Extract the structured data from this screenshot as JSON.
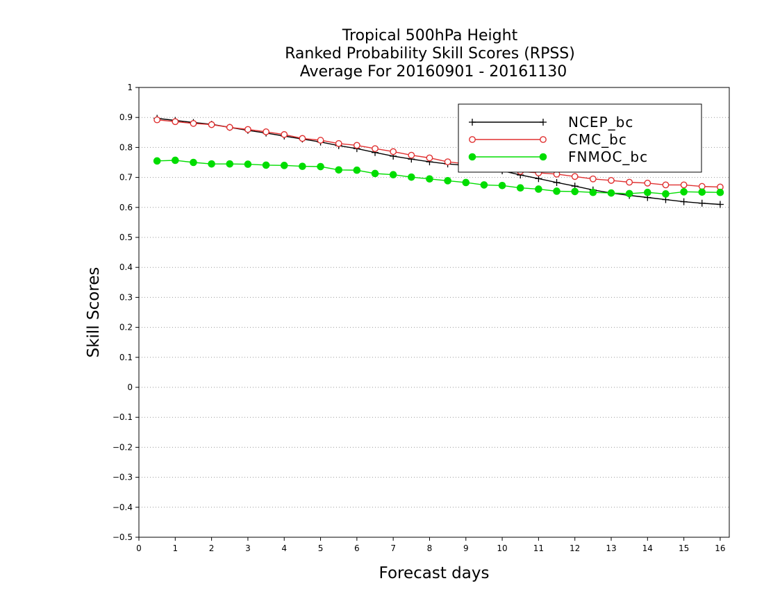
{
  "title_lines": [
    "Tropical 500hPa Height",
    "Ranked Probability Skill Scores (RPSS)",
    "Average For 20160901 - 20161130"
  ],
  "chart_data": {
    "type": "line",
    "title": "Tropical 500hPa Height / Ranked Probability Skill Scores (RPSS) / Average For 20160901 - 20161130",
    "xlabel": "Forecast days",
    "ylabel": "Skill Scores",
    "xlim": [
      0,
      16.25
    ],
    "ylim": [
      -0.5,
      1
    ],
    "x_ticks": [
      0,
      1,
      2,
      3,
      4,
      5,
      6,
      7,
      8,
      9,
      10,
      11,
      12,
      13,
      14,
      15,
      16
    ],
    "x_tick_labels": [
      "0",
      "1",
      "2",
      "3",
      "4",
      "5",
      "6",
      "7",
      "8",
      "9",
      "10",
      "11",
      "12",
      "13",
      "14",
      "15",
      "16"
    ],
    "y_ticks": [
      -0.5,
      -0.4,
      -0.3,
      -0.2,
      -0.1,
      0,
      0.1,
      0.2,
      0.3,
      0.4,
      0.5,
      0.6,
      0.7,
      0.8,
      0.9,
      1
    ],
    "y_tick_labels": [
      "−0.5",
      "−0.4",
      "−0.3",
      "−0.2",
      "−0.1",
      "0",
      "0.1",
      "0.2",
      "0.3",
      "0.4",
      "0.5",
      "0.6",
      "0.7",
      "0.8",
      "0.9",
      "1"
    ],
    "grid": "horizontal dotted",
    "legend_position": "top-right",
    "x": [
      0.5,
      1,
      1.5,
      2,
      2.5,
      3,
      3.5,
      4,
      4.5,
      5,
      5.5,
      6,
      6.5,
      7,
      7.5,
      8,
      8.5,
      9,
      9.5,
      10,
      10.5,
      11,
      11.5,
      12,
      12.5,
      13,
      13.5,
      14,
      14.5,
      15,
      15.5,
      16
    ],
    "series": [
      {
        "name": "NCEP_bc",
        "color": "#000000",
        "marker": "plus",
        "values": [
          0.897,
          0.89,
          0.883,
          0.877,
          0.867,
          0.857,
          0.848,
          0.838,
          0.828,
          0.818,
          0.806,
          0.796,
          0.783,
          0.771,
          0.761,
          0.752,
          0.745,
          0.74,
          0.733,
          0.722,
          0.708,
          0.696,
          0.683,
          0.671,
          0.658,
          0.648,
          0.64,
          0.633,
          0.626,
          0.619,
          0.614,
          0.61
        ]
      },
      {
        "name": "CMC_bc",
        "color": "#e03030",
        "marker": "open-circle",
        "values": [
          0.892,
          0.886,
          0.88,
          0.876,
          0.867,
          0.86,
          0.852,
          0.843,
          0.83,
          0.824,
          0.813,
          0.807,
          0.796,
          0.786,
          0.774,
          0.765,
          0.752,
          0.745,
          0.738,
          0.73,
          0.72,
          0.715,
          0.711,
          0.703,
          0.695,
          0.69,
          0.684,
          0.681,
          0.675,
          0.675,
          0.67,
          0.668
        ]
      },
      {
        "name": "FNMOC_bc",
        "color": "#00dd00",
        "marker": "filled-circle",
        "values": [
          0.755,
          0.757,
          0.75,
          0.745,
          0.745,
          0.744,
          0.741,
          0.74,
          0.737,
          0.736,
          0.725,
          0.724,
          0.713,
          0.709,
          0.701,
          0.695,
          0.689,
          0.683,
          0.675,
          0.673,
          0.665,
          0.661,
          0.654,
          0.653,
          0.65,
          0.648,
          0.646,
          0.65,
          0.645,
          0.652,
          0.651,
          0.65
        ]
      }
    ]
  }
}
